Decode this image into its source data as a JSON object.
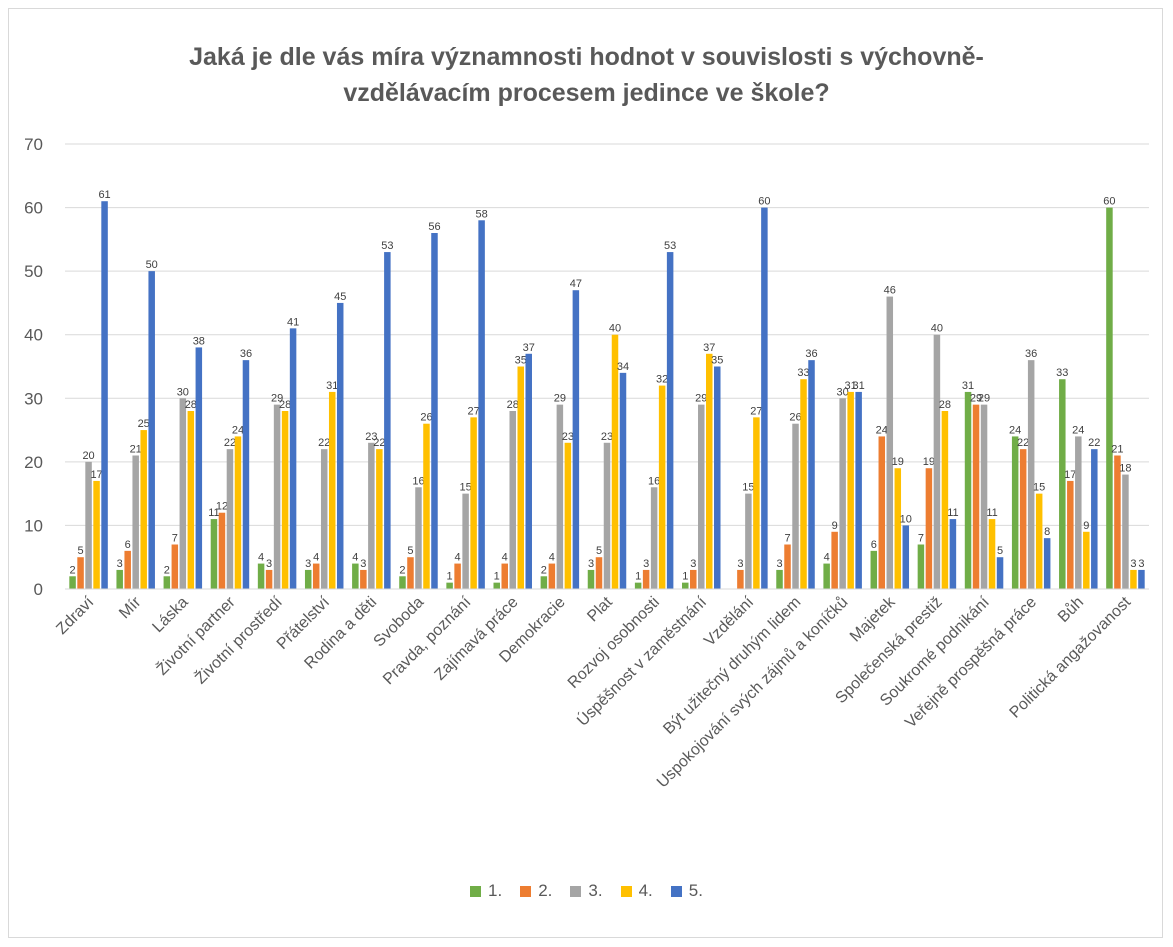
{
  "chart_data": {
    "type": "bar",
    "title": "Jaká je dle vás míra významnosti hodnot v souvislosti s výchovně-\nvzdělávacím procesem jedince ve škole?",
    "xlabel": "",
    "ylabel": "",
    "ylim": [
      0,
      70
    ],
    "yticks": [
      0,
      10,
      20,
      30,
      40,
      50,
      60,
      70
    ],
    "grid": true,
    "legend_position": "bottom",
    "categories": [
      "Zdraví",
      "Mír",
      "Láska",
      "Životní partner",
      "Životní prostředí",
      "Přátelství",
      "Rodina a děti",
      "Svoboda",
      "Pravda, poznání",
      "Zajímavá práce",
      "Demokracie",
      "Plat",
      "Rozvoj osobnosti",
      "Úspěšnost v zaměstnání",
      "Vzdělání",
      "Být užitečný druhým lidem",
      "Uspokojování svých zájmů a koníčků",
      "Majetek",
      "Společenská prestiž",
      "Soukromé podnikání",
      "Veřejně prospěšná práce",
      "Bůh",
      "Politická angažovanost"
    ],
    "series": [
      {
        "name": "1.",
        "color": "#70ad47",
        "values": [
          2,
          3,
          2,
          11,
          4,
          3,
          4,
          2,
          1,
          1,
          2,
          3,
          1,
          1,
          0,
          3,
          4,
          6,
          7,
          31,
          24,
          33,
          60
        ]
      },
      {
        "name": "2.",
        "color": "#ed7d31",
        "values": [
          5,
          6,
          7,
          12,
          3,
          4,
          3,
          5,
          4,
          4,
          4,
          5,
          3,
          3,
          3,
          7,
          9,
          24,
          19,
          29,
          22,
          17,
          21
        ]
      },
      {
        "name": "3.",
        "color": "#a5a5a5",
        "values": [
          20,
          21,
          30,
          22,
          29,
          22,
          23,
          16,
          15,
          28,
          29,
          23,
          16,
          29,
          15,
          26,
          30,
          46,
          40,
          29,
          36,
          24,
          18
        ]
      },
      {
        "name": "4.",
        "color": "#ffc000",
        "values": [
          17,
          25,
          28,
          24,
          28,
          31,
          22,
          26,
          27,
          35,
          23,
          40,
          32,
          37,
          27,
          33,
          31,
          19,
          28,
          11,
          15,
          9,
          3
        ]
      },
      {
        "name": "5.",
        "color": "#4472c4",
        "values": [
          61,
          50,
          38,
          36,
          41,
          45,
          53,
          56,
          58,
          37,
          47,
          34,
          53,
          35,
          60,
          36,
          31,
          10,
          11,
          5,
          8,
          22,
          3
        ]
      }
    ],
    "data_labels": [
      [
        "2",
        "3",
        "2",
        "11",
        "4",
        "3",
        "4",
        "2",
        "1",
        "1",
        "2",
        "3",
        "1",
        "1",
        "",
        "3",
        "4",
        "6",
        "7",
        "31",
        "24",
        "33",
        "60"
      ],
      [
        "5",
        "6",
        "7",
        "12",
        "3",
        "4",
        "3",
        "5",
        "4",
        "4",
        "4",
        "5",
        "3",
        "3",
        "3",
        "7",
        "9",
        "24",
        "19",
        "29",
        "22",
        "17",
        "21"
      ],
      [
        "20",
        "21",
        "30",
        "22",
        "29",
        "22",
        "23",
        "16",
        "15",
        "28",
        "29",
        "23",
        "16",
        "29",
        "15",
        "26",
        "30",
        "46",
        "40",
        "29",
        "36",
        "24",
        "18"
      ],
      [
        "17",
        "25",
        "28",
        "24",
        "28",
        "31",
        "22",
        "26",
        "27",
        "35",
        "23",
        "40",
        "32",
        "37",
        "27",
        "33",
        "31",
        "19",
        "28",
        "11",
        "15",
        "9",
        "3"
      ],
      [
        "61",
        "50",
        "38",
        "36",
        "41",
        "45",
        "53",
        "56",
        "58",
        "37",
        "47",
        "34",
        "53",
        "35",
        "60",
        "36",
        "31",
        "10",
        "11",
        "5",
        "8",
        "22",
        "3"
      ]
    ],
    "ytick_labels": [
      "0",
      "10",
      "20",
      "30",
      "40",
      "50",
      "60",
      "70"
    ]
  }
}
